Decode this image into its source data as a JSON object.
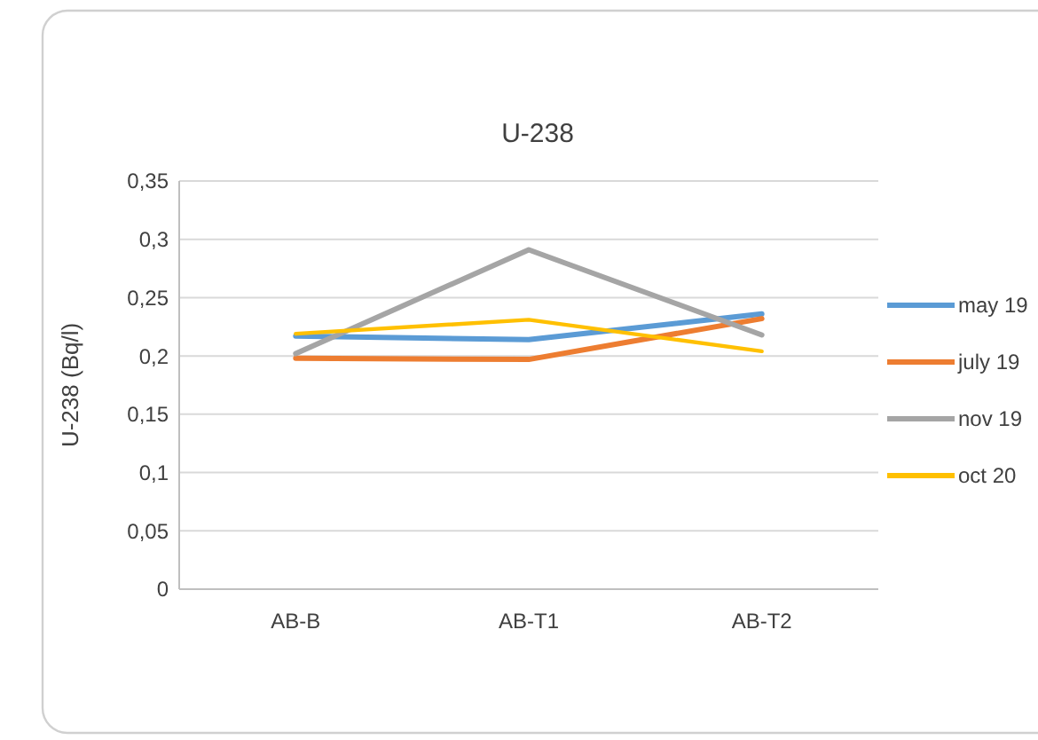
{
  "chart_data": {
    "type": "line",
    "title": "U-238",
    "ylabel": "U-238 (Bq/l)",
    "categories": [
      "AB-B",
      "AB-T1",
      "AB-T2"
    ],
    "series": [
      {
        "name": "may 19",
        "color": "#5b9bd5",
        "values": [
          0.217,
          0.214,
          0.236
        ]
      },
      {
        "name": "july 19",
        "color": "#ed7d31",
        "values": [
          0.198,
          0.197,
          0.232
        ]
      },
      {
        "name": "nov 19",
        "color": "#a5a5a5",
        "values": [
          0.202,
          0.291,
          0.218
        ]
      },
      {
        "name": "oct 20",
        "color": "#ffc000",
        "values": [
          0.219,
          0.231,
          0.204
        ]
      }
    ],
    "ylim": [
      0,
      0.35
    ],
    "yticks": [
      {
        "value": 0,
        "label": "0"
      },
      {
        "value": 0.05,
        "label": "0,05"
      },
      {
        "value": 0.1,
        "label": "0,1"
      },
      {
        "value": 0.15,
        "label": "0,15"
      },
      {
        "value": 0.2,
        "label": "0,2"
      },
      {
        "value": 0.25,
        "label": "0,25"
      },
      {
        "value": 0.3,
        "label": "0,3"
      },
      {
        "value": 0.35,
        "label": "0,35"
      }
    ],
    "grid": "y",
    "legend": "right"
  }
}
